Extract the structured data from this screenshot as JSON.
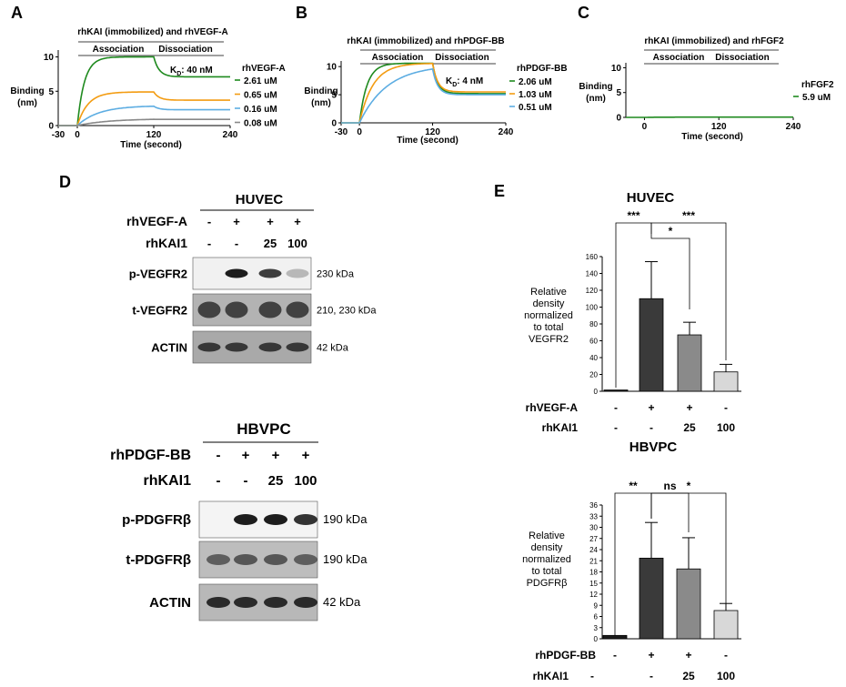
{
  "panel_letters": {
    "a": "A",
    "b": "B",
    "c": "C",
    "d": "D",
    "e": "E"
  },
  "panelA": {
    "title": "rhKAI (immobilized) and rhVEGF-A",
    "association": "Association",
    "dissociation": "Dissociation",
    "kd_prefix": "K",
    "kd_sub": "D",
    "kd_value": ": 40 nM",
    "ylabel_line1": "Binding",
    "ylabel_line2": "(nm)",
    "xlabel": "Time (second)",
    "legend_title": "rhVEGF-A",
    "x_ticks": [
      "-30",
      "0",
      "120",
      "240"
    ],
    "y_ticks": [
      "0",
      "5",
      "10"
    ]
  },
  "panelB": {
    "title": "rhKAI (immobilized) and rhPDGF-BB",
    "association": "Association",
    "dissociation": "Dissociation",
    "kd_prefix": "K",
    "kd_sub": "D",
    "kd_value": ": 4 nM",
    "ylabel_line1": "Binding",
    "ylabel_line2": "(nm)",
    "xlabel": "Time (second)",
    "legend_title": "rhPDGF-BB",
    "x_ticks": [
      "-30",
      "0",
      "120",
      "240"
    ],
    "y_ticks": [
      "0",
      "5",
      "10"
    ]
  },
  "panelC": {
    "title": "rhKAI (immobilized) and rhFGF2",
    "association": "Association",
    "dissociation": "Dissociation",
    "ylabel_line1": "Binding",
    "ylabel_line2": "(nm)",
    "xlabel": "Time (second)",
    "legend_title": "rhFGF2",
    "x_ticks": [
      "0",
      "120",
      "240"
    ],
    "y_ticks": [
      "0",
      "5",
      "10"
    ]
  },
  "blots": {
    "huvec": {
      "cell": "HUVEC",
      "treat1_label": "rhVEGF-A",
      "treat1": [
        "-",
        "+",
        "+",
        "+"
      ],
      "treat2_label": "rhKAI1",
      "treat2": [
        "-",
        "-",
        "25",
        "100"
      ],
      "rows": [
        {
          "label": "p-VEGFR2",
          "kda": "230 kDa"
        },
        {
          "label": "t-VEGFR2",
          "kda": "210, 230 kDa"
        },
        {
          "label": "ACTIN",
          "kda": "42 kDa"
        }
      ]
    },
    "hbvpc": {
      "cell": "HBVPC",
      "treat1_label": "rhPDGF-BB",
      "treat1": [
        "-",
        "+",
        "+",
        "+"
      ],
      "treat2_label": "rhKAI1",
      "treat2": [
        "-",
        "-",
        "25",
        "100"
      ],
      "rows": [
        {
          "label": "p-PDGFRβ",
          "kda": "190 kDa"
        },
        {
          "label": "t-PDGFRβ",
          "kda": "190 kDa"
        },
        {
          "label": "ACTIN",
          "kda": "42 kDa"
        }
      ]
    }
  },
  "panelE_top": {
    "title": "HUVEC",
    "ylabel": [
      "Relative",
      "density",
      "normalized",
      "to total",
      "VEGFR2"
    ],
    "treat1_label": "rhVEGF-A",
    "treat1": [
      "-",
      "+",
      "+",
      "-"
    ],
    "treat2_label": "rhKAI1",
    "treat2": [
      "-",
      "-",
      "25",
      "100"
    ],
    "sig": [
      "***",
      "*",
      "***"
    ],
    "y_ticks": [
      "0",
      "20",
      "40",
      "60",
      "80",
      "100",
      "120",
      "140",
      "160"
    ]
  },
  "panelE_bottom": {
    "title": "HBVPC",
    "ylabel": [
      "Relative",
      "density",
      "normalized",
      "to total",
      "PDGFRβ"
    ],
    "treat1_label": "rhPDGF-BB",
    "treat1": [
      "-",
      "+",
      "+",
      "-"
    ],
    "treat2_label": "rhKAI1",
    "treat2": [
      "-",
      "-",
      "25",
      "100"
    ],
    "sig": [
      "**",
      "ns",
      "*"
    ],
    "y_ticks": [
      "0",
      "3",
      "6",
      "9",
      "12",
      "15",
      "18",
      "21",
      "24",
      "27",
      "30",
      "33",
      "36"
    ]
  },
  "chart_data": [
    {
      "type": "line",
      "title": "rhKAI (immobilized) and rhVEGF-A",
      "xlabel": "Time (second)",
      "ylabel": "Binding (nm)",
      "xlim": [
        -30,
        240
      ],
      "ylim": [
        0,
        11
      ],
      "legend_title": "rhVEGF-A",
      "series": [
        {
          "name": "2.61 uM",
          "color": "#1f8a1f",
          "plateau": 10.0,
          "dissoc_end": 7.1,
          "rate": 0.09
        },
        {
          "name": "0.65 uM",
          "color": "#f39c12",
          "plateau": 4.9,
          "dissoc_end": 3.7,
          "rate": 0.06
        },
        {
          "name": "0.16 uM",
          "color": "#5dade2",
          "plateau": 2.9,
          "dissoc_end": 2.3,
          "rate": 0.03
        },
        {
          "name": "0.08 uM",
          "color": "#888888",
          "plateau": 1.0,
          "dissoc_end": 0.9,
          "rate": 0.02
        }
      ]
    },
    {
      "type": "line",
      "title": "rhKAI (immobilized) and rhPDGF-BB",
      "xlabel": "Time (second)",
      "ylabel": "Binding (nm)",
      "xlim": [
        -30,
        240
      ],
      "ylim": [
        0,
        11
      ],
      "legend_title": "rhPDGF-BB",
      "series": [
        {
          "name": "2.06 uM",
          "color": "#1f8a1f",
          "plateau": 10.6,
          "dissoc_end": 5.2,
          "rate": 0.08
        },
        {
          "name": "1.03 uM",
          "color": "#f39c12",
          "plateau": 10.6,
          "dissoc_end": 5.5,
          "rate": 0.045
        },
        {
          "name": "0.51 uM",
          "color": "#5dade2",
          "plateau": 10.3,
          "dissoc_end": 5.0,
          "rate": 0.022
        }
      ]
    },
    {
      "type": "line",
      "title": "rhKAI (immobilized) and rhFGF2",
      "xlabel": "Time (second)",
      "ylabel": "Binding (nm)",
      "xlim": [
        -30,
        240
      ],
      "ylim": [
        0,
        11
      ],
      "legend_title": "rhFGF2",
      "series": [
        {
          "name": "5.9 uM",
          "color": "#1f8a1f",
          "plateau": 0.05,
          "dissoc_end": 0.05,
          "rate": 0.05
        }
      ]
    },
    {
      "type": "bar",
      "title": "HUVEC",
      "ylabel": "Relative density normalized to total VEGFR2",
      "ylim": [
        0,
        160
      ],
      "categories": [
        "-/-",
        "+/-",
        "+/25",
        "-/100"
      ],
      "values": [
        1.5,
        110,
        67,
        23
      ],
      "errors": [
        0,
        44,
        15,
        9
      ],
      "colors": [
        "#1a1a1a",
        "#3a3a3a",
        "#8a8a8a",
        "#d8d8d8"
      ]
    },
    {
      "type": "bar",
      "title": "HBVPC",
      "ylabel": "Relative density normalized to total PDGFRβ",
      "ylim": [
        0,
        36
      ],
      "categories": [
        "-/-",
        "+/-",
        "+/25",
        "-/100"
      ],
      "values": [
        0.9,
        21.7,
        18.8,
        7.6
      ],
      "errors": [
        0,
        9.6,
        8.4,
        1.9
      ],
      "colors": [
        "#1a1a1a",
        "#3a3a3a",
        "#8a8a8a",
        "#d8d8d8"
      ]
    }
  ]
}
